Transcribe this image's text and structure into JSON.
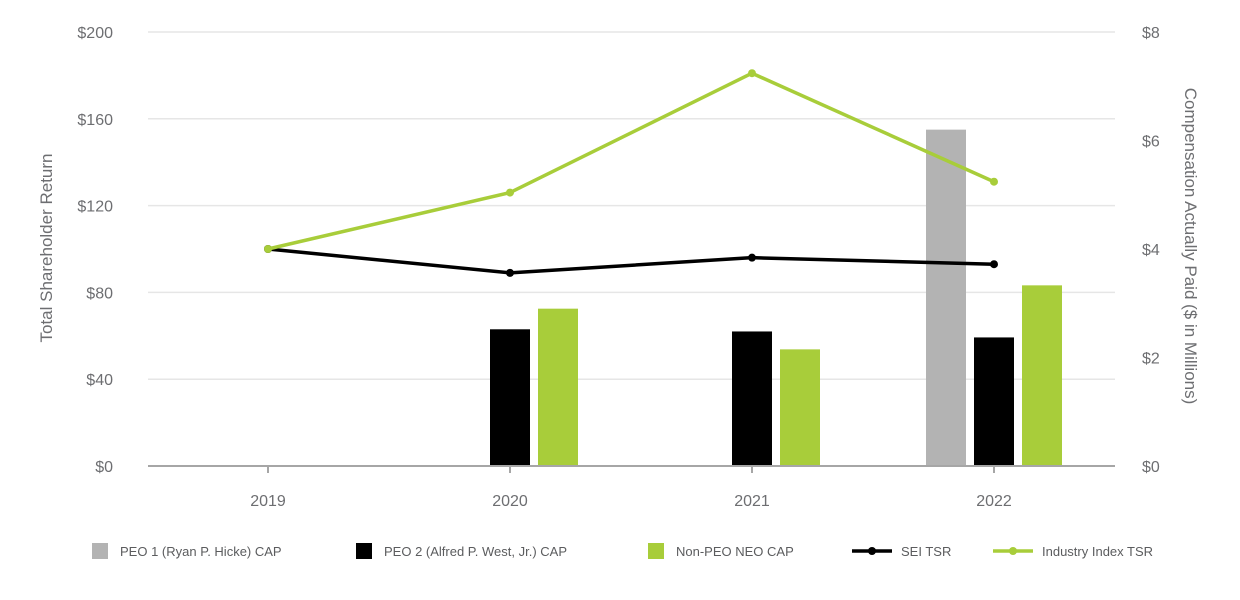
{
  "chart_data": {
    "type": "bar",
    "categories": [
      "2019",
      "2020",
      "2021",
      "2022"
    ],
    "left_axis": {
      "label": "Total Shareholder Return",
      "ylim": [
        0,
        200
      ],
      "ticks": [
        0,
        40,
        80,
        120,
        160,
        200
      ],
      "tick_labels": [
        "$0",
        "$40",
        "$80",
        "$120",
        "$160",
        "$200"
      ]
    },
    "right_axis": {
      "label": "Compensation Actually Paid ($ in Millions)",
      "ylim": [
        0,
        8
      ],
      "ticks": [
        0,
        2,
        4,
        6,
        8
      ],
      "tick_labels": [
        "$0",
        "$2",
        "$4",
        "$6",
        "$8"
      ]
    },
    "bar_series": [
      {
        "name": "PEO 1  (Ryan P. Hicke) CAP",
        "axis": "right",
        "color": "#b3b3b3",
        "values": [
          null,
          null,
          null,
          6.2
        ]
      },
      {
        "name": "PEO 2 (Alfred P. West, Jr.) CAP",
        "axis": "right",
        "color": "#000000",
        "values": [
          null,
          2.52,
          2.48,
          2.37
        ]
      },
      {
        "name": "Non-PEO NEO CAP",
        "axis": "right",
        "color": "#a8cd3a",
        "values": [
          null,
          2.9,
          2.15,
          3.33
        ]
      }
    ],
    "line_series": [
      {
        "name": "SEI TSR",
        "axis": "left",
        "color": "#000000",
        "values": [
          100,
          89,
          96,
          93
        ]
      },
      {
        "name": "Industry Index TSR",
        "axis": "left",
        "color": "#a8cd3a",
        "values": [
          100,
          126,
          181,
          131
        ]
      }
    ],
    "legend": [
      {
        "label": "PEO 1  (Ryan P. Hicke) CAP",
        "kind": "square",
        "color": "#b3b3b3"
      },
      {
        "label": "PEO 2 (Alfred P. West, Jr.) CAP",
        "kind": "square",
        "color": "#000000"
      },
      {
        "label": "Non-PEO NEO CAP",
        "kind": "square",
        "color": "#a8cd3a"
      },
      {
        "label": "SEI TSR",
        "kind": "line",
        "color": "#000000"
      },
      {
        "label": "Industry Index TSR",
        "kind": "line",
        "color": "#a8cd3a"
      }
    ],
    "legend_position": "bottom",
    "grid": true
  }
}
